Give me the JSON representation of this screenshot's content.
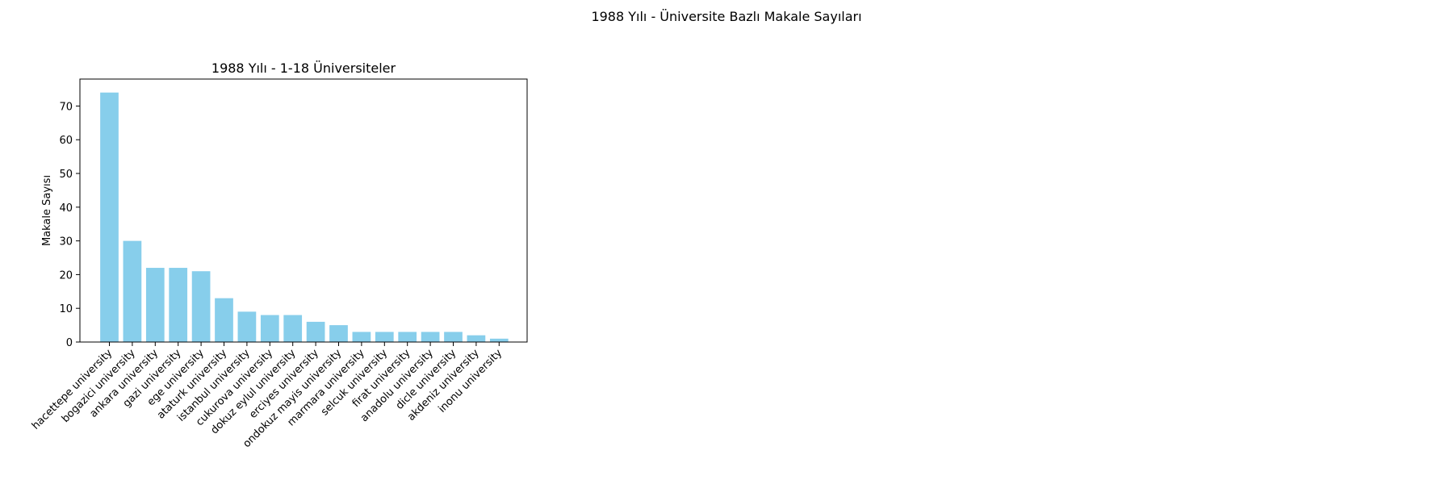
{
  "figure": {
    "suptitle": "1988 Yılı - Üniversite Bazlı Makale Sayıları"
  },
  "chart_data": {
    "type": "bar",
    "title": "1988 Yılı - 1-18 Üniversiteler",
    "xlabel": "",
    "ylabel": "Makale Sayısı",
    "ylim": [
      0,
      78
    ],
    "yticks": [
      0,
      10,
      20,
      30,
      40,
      50,
      60,
      70
    ],
    "grid": false,
    "bar_color": "#87CEEB",
    "categories": [
      "hacettepe university",
      "bogazici university",
      "ankara university",
      "gazi university",
      "ege university",
      "ataturk university",
      "istanbul university",
      "cukurova university",
      "dokuz eylul university",
      "erciyes university",
      "ondokuz mayis university",
      "marmara university",
      "selcuk university",
      "firat university",
      "anadolu university",
      "dicle university",
      "akdeniz university",
      "inonu university"
    ],
    "values": [
      74,
      30,
      22,
      22,
      21,
      13,
      9,
      8,
      8,
      6,
      5,
      3,
      3,
      3,
      3,
      3,
      2,
      1
    ]
  }
}
